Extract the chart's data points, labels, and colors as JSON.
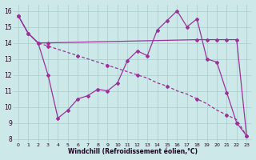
{
  "xlabel": "Windchill (Refroidissement éolien,°C)",
  "bg_color": "#cce8e8",
  "line_color": "#993399",
  "grid_color": "#aacccc",
  "xlim": [
    -0.5,
    23.5
  ],
  "ylim": [
    7.8,
    16.4
  ],
  "yticks": [
    8,
    9,
    10,
    11,
    12,
    13,
    14,
    15,
    16
  ],
  "xticks": [
    0,
    1,
    2,
    3,
    4,
    5,
    6,
    7,
    8,
    9,
    10,
    11,
    12,
    13,
    14,
    15,
    16,
    17,
    18,
    19,
    20,
    21,
    22,
    23
  ],
  "line1_x": [
    0,
    1,
    2,
    3,
    18,
    19,
    20,
    21,
    22,
    23
  ],
  "line1_y": [
    15.7,
    14.6,
    14.0,
    14.0,
    14.2,
    14.2,
    14.2,
    14.2,
    14.2,
    8.2
  ],
  "line2_x": [
    0,
    1,
    2,
    3,
    4,
    5,
    6,
    7,
    8,
    9,
    10,
    11,
    12,
    13,
    14,
    15,
    16,
    17,
    18,
    19,
    20,
    21,
    22,
    23
  ],
  "line2_y": [
    15.7,
    14.6,
    14.0,
    13.8,
    13.6,
    13.4,
    13.2,
    13.0,
    12.8,
    12.6,
    12.4,
    12.2,
    12.0,
    11.8,
    11.5,
    11.3,
    11.0,
    10.8,
    10.5,
    10.2,
    9.8,
    9.5,
    9.2,
    8.2
  ],
  "line3_x": [
    0,
    1,
    2,
    3,
    4,
    5,
    6,
    7,
    8,
    9,
    10,
    11,
    12,
    13,
    14,
    15,
    16,
    17,
    18,
    19,
    20,
    21,
    22,
    23
  ],
  "line3_y": [
    15.7,
    14.6,
    14.0,
    12.0,
    9.3,
    9.8,
    10.5,
    10.7,
    11.1,
    11.0,
    11.5,
    12.9,
    13.5,
    13.2,
    14.8,
    15.4,
    16.0,
    15.0,
    15.5,
    13.0,
    12.8,
    10.9,
    9.0,
    8.2
  ]
}
